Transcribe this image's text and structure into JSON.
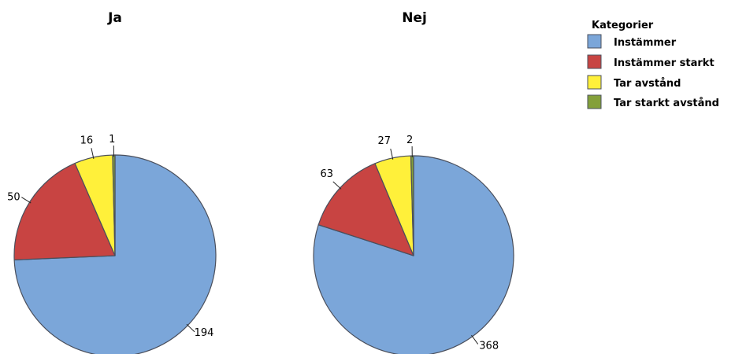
{
  "chart_data": {
    "type": "pie",
    "legend": {
      "title": "Kategorier",
      "position": "top-right",
      "entries": [
        {
          "name": "Instämmer",
          "color": "#7BA6D9"
        },
        {
          "name": "Instämmer starkt",
          "color": "#C84442"
        },
        {
          "name": "Tar avstånd",
          "color": "#FFF03A"
        },
        {
          "name": "Tar starkt avstånd",
          "color": "#84A03A"
        }
      ]
    },
    "charts": [
      {
        "title": "Ja",
        "categories": [
          "Instämmer",
          "Instämmer starkt",
          "Tar avstånd",
          "Tar starkt avstånd"
        ],
        "values": [
          194,
          50,
          16,
          1
        ]
      },
      {
        "title": "Nej",
        "categories": [
          "Instämmer",
          "Instämmer starkt",
          "Tar avstånd",
          "Tar starkt avstånd"
        ],
        "values": [
          368,
          63,
          27,
          2
        ]
      }
    ]
  }
}
